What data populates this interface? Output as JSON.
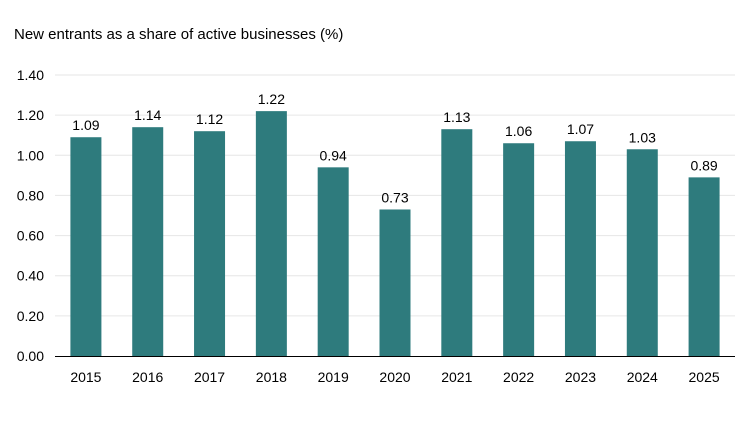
{
  "chart_data": {
    "type": "bar",
    "title": "New entrants as a share of active businesses (%)",
    "xlabel": "",
    "ylabel": "",
    "categories": [
      "2015",
      "2016",
      "2017",
      "2018",
      "2019",
      "2020",
      "2021",
      "2022",
      "2023",
      "2024",
      "2025"
    ],
    "values": [
      1.09,
      1.14,
      1.12,
      1.22,
      0.94,
      0.73,
      1.13,
      1.06,
      1.07,
      1.03,
      0.89
    ],
    "value_labels": [
      "1.09",
      "1.14",
      "1.12",
      "1.22",
      "0.94",
      "0.73",
      "1.13",
      "1.06",
      "1.07",
      "1.03",
      "0.89"
    ],
    "ylim": [
      0,
      1.4
    ],
    "yticks": [
      "0.00",
      "0.20",
      "0.40",
      "0.60",
      "0.80",
      "1.00",
      "1.20",
      "1.40"
    ],
    "grid": true,
    "legend": "none",
    "bar_color": "#2e7b7d",
    "grid_color": "#e6e6e6",
    "axis_color": "#000000"
  }
}
